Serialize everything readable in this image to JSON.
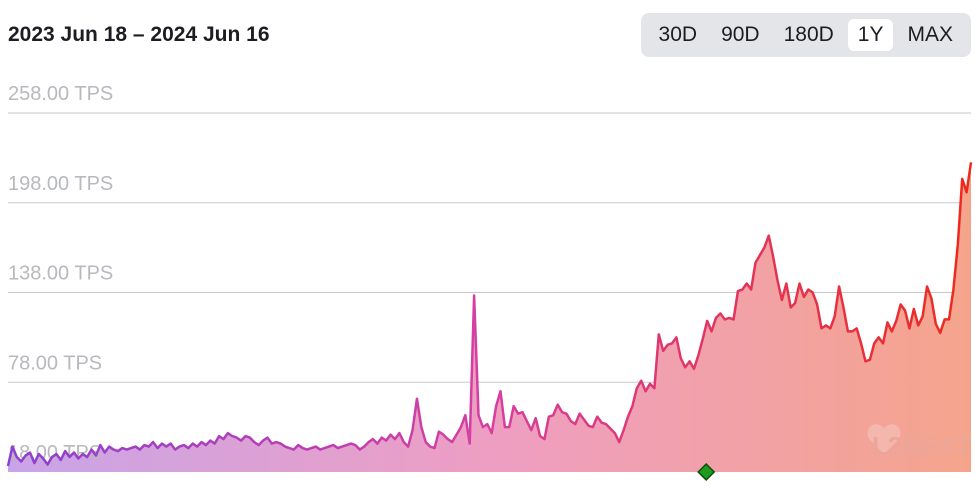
{
  "header": {
    "range_title": "2023 Jun 18 – 2024 Jun 16",
    "tabs": [
      {
        "label": "30D",
        "active": false
      },
      {
        "label": "90D",
        "active": false
      },
      {
        "label": "180D",
        "active": false
      },
      {
        "label": "1Y",
        "active": true
      },
      {
        "label": "MAX",
        "active": false
      }
    ]
  },
  "watermark": {
    "text": "L2BEAT"
  },
  "colors": {
    "line_start": "#8e3fd0",
    "line_mid": "#d63fa0",
    "line_end": "#ee2a1c",
    "fill_start": "#c8a4e8",
    "fill_mid": "#ee9ec2",
    "fill_end": "#f5a48c",
    "marker": "#1f9a1f"
  },
  "chart_data": {
    "type": "area",
    "x_start": "2023 Jun 18",
    "x_end": "2024 Jun 16",
    "ylim": [
      18,
      258
    ],
    "yticks": [
      18,
      78,
      138,
      198,
      258
    ],
    "ytick_labels": [
      "18.00 TPS",
      "78.00 TPS",
      "138.00 TPS",
      "198.00 TPS",
      "258.00 TPS"
    ],
    "grid": true,
    "series": [
      {
        "values": [
          22,
          35,
          28,
          25,
          29,
          31,
          24,
          30,
          27,
          23,
          28,
          30,
          26,
          32,
          28,
          31,
          27,
          30,
          28,
          33,
          29,
          36,
          31,
          35,
          33,
          32,
          34,
          33,
          34,
          35,
          33,
          36,
          35,
          38,
          34,
          37,
          35,
          37,
          33,
          35,
          36,
          34,
          37,
          35,
          38,
          36,
          39,
          37,
          42,
          40,
          44,
          42,
          41,
          39,
          42,
          41,
          38,
          36,
          39,
          41,
          37,
          38,
          37,
          35,
          34,
          33,
          36,
          34,
          33,
          34,
          35,
          33,
          34,
          35,
          36,
          34,
          35,
          36,
          37,
          36,
          33,
          35,
          38,
          40,
          37,
          41,
          39,
          43,
          40,
          44,
          38,
          35,
          46,
          67,
          48,
          38,
          35,
          34,
          45,
          43,
          40,
          38,
          43,
          48,
          56,
          37,
          136,
          56,
          48,
          50,
          44,
          62,
          72,
          48,
          48,
          62,
          57,
          58,
          52,
          46,
          54,
          42,
          40,
          55,
          56,
          63,
          58,
          57,
          52,
          50,
          57,
          53,
          49,
          48,
          55,
          51,
          50,
          47,
          44,
          38,
          46,
          55,
          62,
          74,
          79,
          72,
          77,
          74,
          110,
          99,
          103,
          104,
          108,
          94,
          88,
          92,
          87,
          96,
          107,
          119,
          112,
          121,
          124,
          120,
          121,
          120,
          139,
          140,
          144,
          140,
          158,
          163,
          168,
          176,
          162,
          146,
          133,
          144,
          128,
          131,
          144,
          135,
          140,
          138,
          130,
          114,
          116,
          114,
          122,
          142,
          128,
          112,
          112,
          114,
          104,
          92,
          93,
          104,
          108,
          104,
          118,
          112,
          119,
          130,
          126,
          114,
          127,
          116,
          122,
          142,
          134,
          117,
          111,
          120,
          120,
          140,
          170,
          214,
          205,
          225
        ],
        "color_scale": [
          "line_start",
          "line_mid",
          "line_end"
        ]
      }
    ],
    "marker": {
      "shape": "diamond",
      "x_fraction": 0.725
    }
  }
}
